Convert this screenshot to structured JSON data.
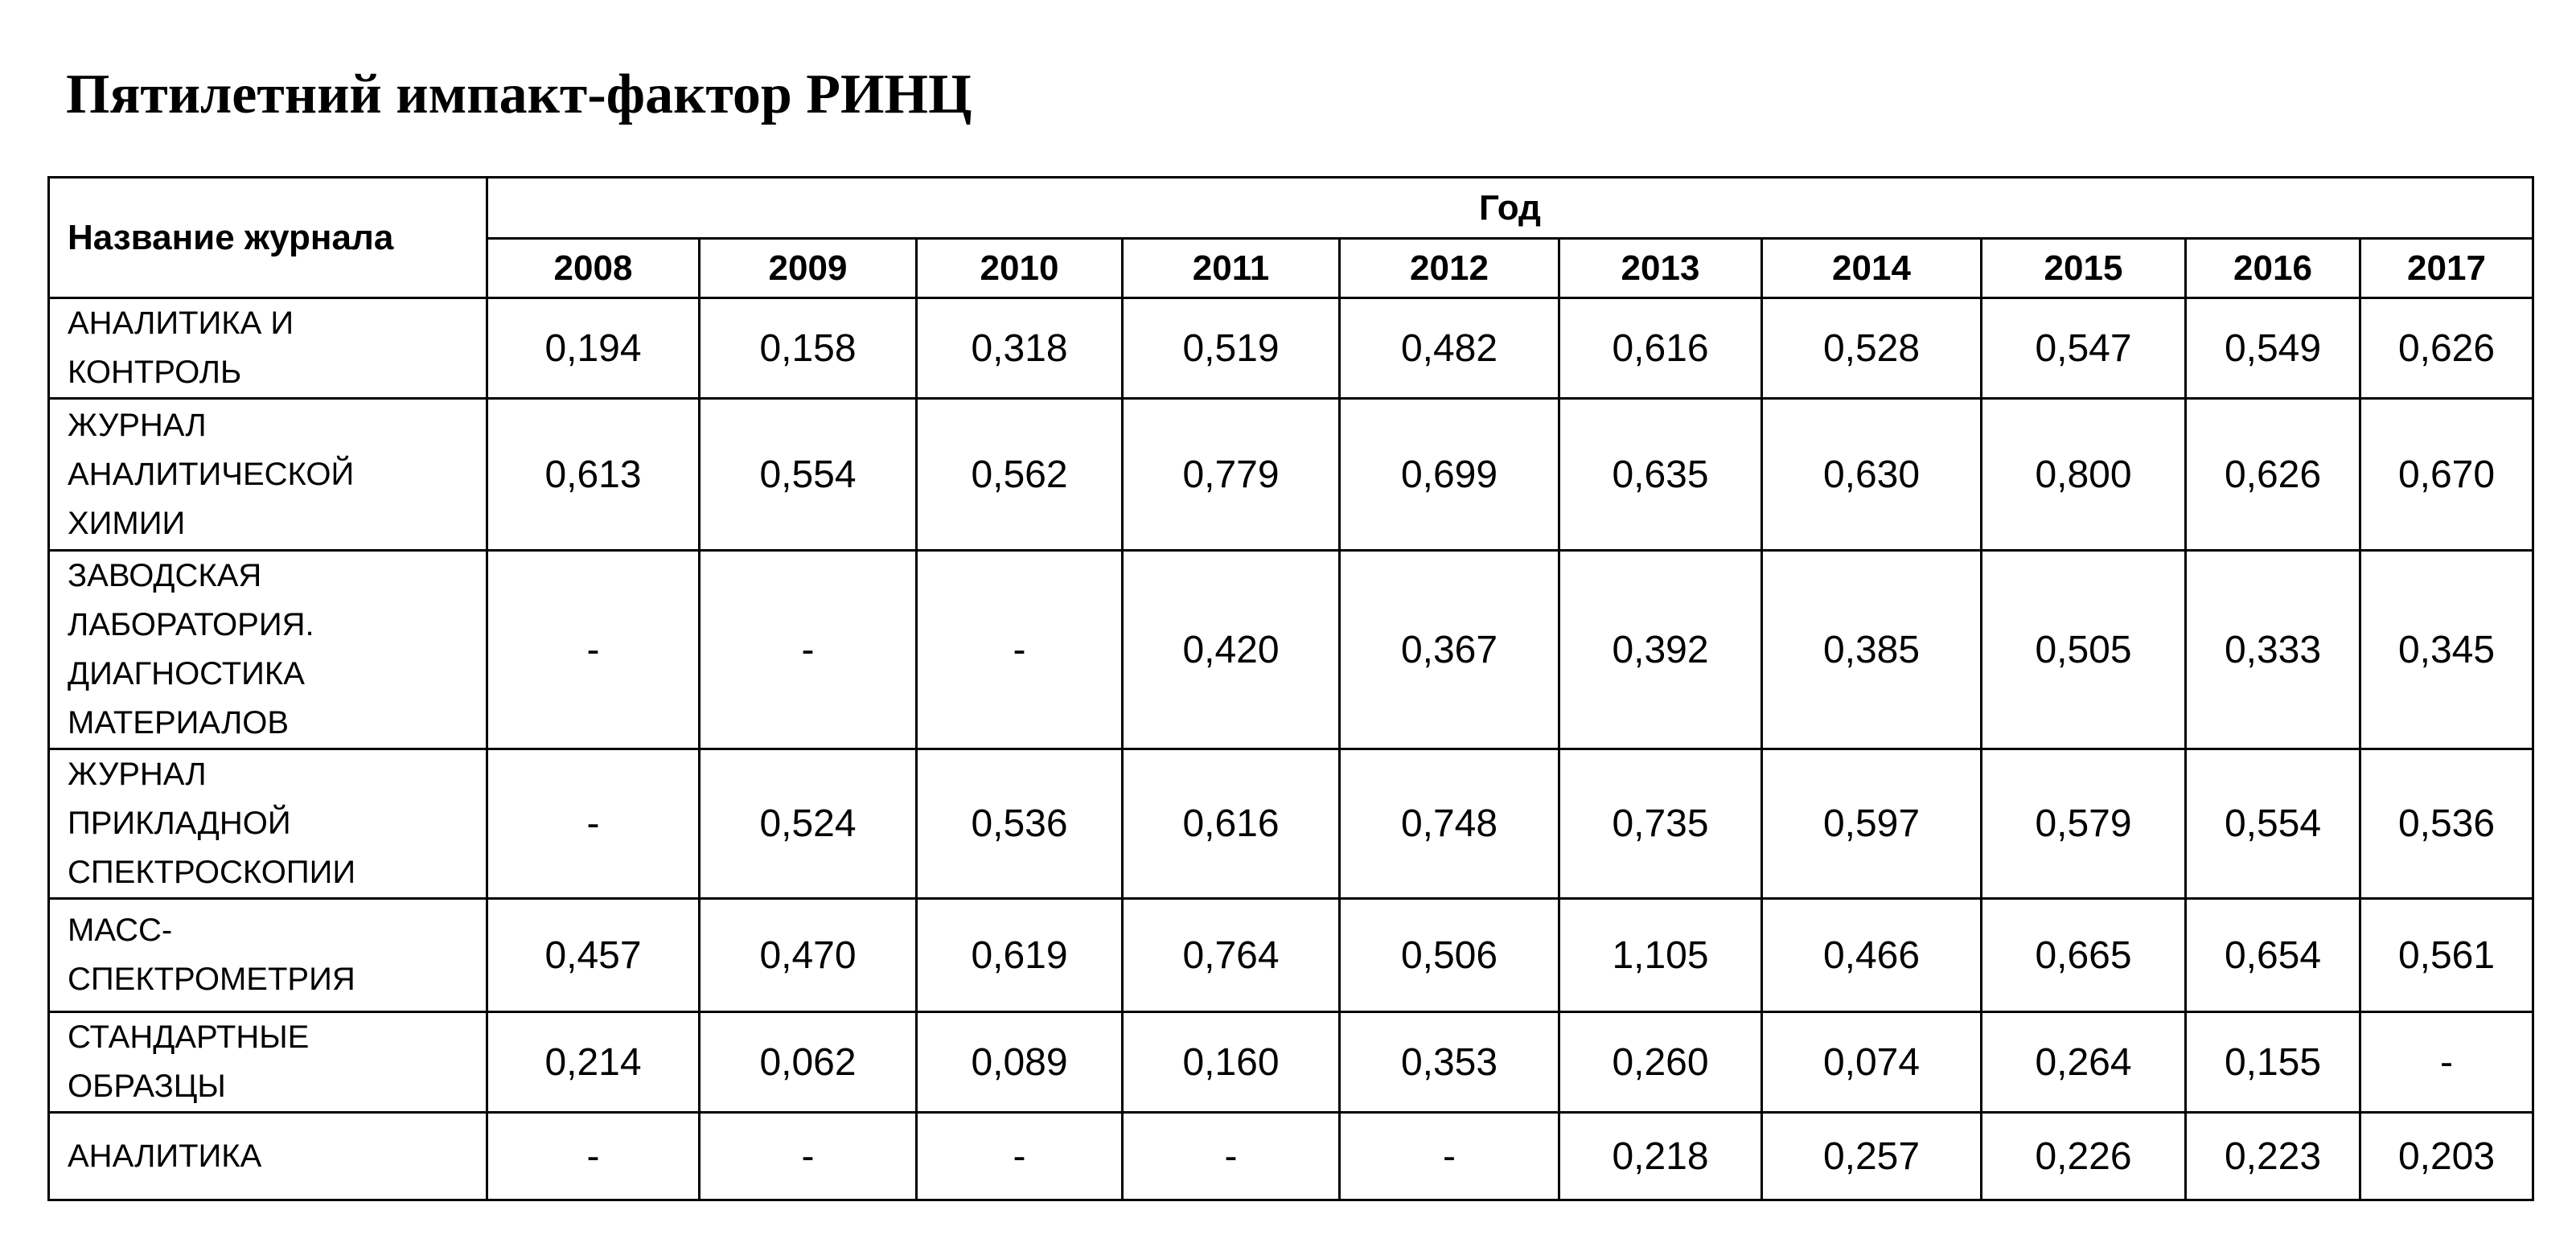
{
  "title": "Пятилетний импакт-фактор РИНЦ",
  "table": {
    "name_header": "Название журнала",
    "year_header": "Год",
    "years": [
      "2008",
      "2009",
      "2010",
      "2011",
      "2012",
      "2013",
      "2014",
      "2015",
      "2016",
      "2017"
    ],
    "rows": [
      {
        "name": [
          "АНАЛИТИКА И",
          "КОНТРОЛЬ"
        ],
        "values": [
          "0,194",
          "0,158",
          "0,318",
          "0,519",
          "0,482",
          "0,616",
          "0,528",
          "0,547",
          "0,549",
          "0,626"
        ]
      },
      {
        "name": [
          "ЖУРНАЛ",
          "АНАЛИТИЧЕСКОЙ",
          "ХИМИИ"
        ],
        "values": [
          "0,613",
          "0,554",
          "0,562",
          "0,779",
          "0,699",
          "0,635",
          "0,630",
          "0,800",
          "0,626",
          "0,670"
        ]
      },
      {
        "name": [
          "ЗАВОДСКАЯ",
          "ЛАБОРАТОРИЯ.",
          "ДИАГНОСТИКА",
          "МАТЕРИАЛОВ"
        ],
        "values": [
          "-",
          "-",
          "-",
          "0,420",
          "0,367",
          "0,392",
          "0,385",
          "0,505",
          "0,333",
          "0,345"
        ]
      },
      {
        "name": [
          "ЖУРНАЛ",
          "ПРИКЛАДНОЙ",
          "СПЕКТРОСКОПИИ"
        ],
        "values": [
          "-",
          "0,524",
          "0,536",
          "0,616",
          "0,748",
          "0,735",
          "0,597",
          "0,579",
          "0,554",
          "0,536"
        ]
      },
      {
        "name": [
          "МАСС-",
          "СПЕКТРОМЕТРИЯ"
        ],
        "values": [
          "0,457",
          "0,470",
          "0,619",
          "0,764",
          "0,506",
          "1,105",
          "0,466",
          "0,665",
          "0,654",
          "0,561"
        ]
      },
      {
        "name": [
          "СТАНДАРТНЫЕ",
          "ОБРАЗЦЫ"
        ],
        "values": [
          "0,214",
          "0,062",
          "0,089",
          "0,160",
          "0,353",
          "0,260",
          "0,074",
          "0,264",
          "0,155",
          "-"
        ]
      },
      {
        "name": [
          "АНАЛИТИКА"
        ],
        "values": [
          "-",
          "-",
          "-",
          "-",
          "-",
          "0,218",
          "0,257",
          "0,226",
          "0,223",
          "0,203"
        ]
      }
    ]
  }
}
